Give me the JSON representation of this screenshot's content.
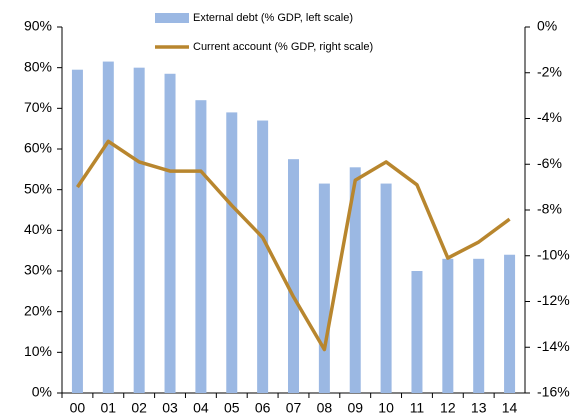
{
  "chart_data": {
    "type": "bar_line",
    "categories": [
      "00",
      "01",
      "02",
      "03",
      "04",
      "05",
      "06",
      "07",
      "08",
      "09",
      "10",
      "11",
      "12",
      "13",
      "14"
    ],
    "series": [
      {
        "name": "External debt (% GDP, left scale)",
        "type": "bar",
        "axis": "y",
        "color": "#9bb8e3",
        "values": [
          79.5,
          81.5,
          80,
          78.5,
          72,
          69,
          67,
          57.5,
          51.5,
          55.5,
          51.5,
          30,
          33,
          33,
          34
        ]
      },
      {
        "name": "Current account (% GDP, right scale)",
        "type": "line",
        "axis": "y2",
        "color": "#b8862e",
        "values": [
          -7.0,
          -5.0,
          -5.9,
          -6.3,
          -6.3,
          -7.8,
          -9.2,
          -11.8,
          -14.1,
          -6.7,
          -5.9,
          -6.9,
          -10.1,
          -9.4,
          -8.4
        ]
      }
    ],
    "ylim": [
      0,
      90
    ],
    "yticks": [
      {
        "value": 0,
        "label": "0%"
      },
      {
        "value": 10,
        "label": "10%"
      },
      {
        "value": 20,
        "label": "20%"
      },
      {
        "value": 30,
        "label": "30%"
      },
      {
        "value": 40,
        "label": "40%"
      },
      {
        "value": 50,
        "label": "50%"
      },
      {
        "value": 60,
        "label": "60%"
      },
      {
        "value": 70,
        "label": "70%"
      },
      {
        "value": 80,
        "label": "80%"
      },
      {
        "value": 90,
        "label": "90%"
      }
    ],
    "y2lim": [
      -16,
      0
    ],
    "y2ticks": [
      {
        "value": 0,
        "label": "0%"
      },
      {
        "value": -2,
        "label": "-2%"
      },
      {
        "value": -4,
        "label": "-4%"
      },
      {
        "value": -6,
        "label": "-6%"
      },
      {
        "value": -8,
        "label": "-8%"
      },
      {
        "value": -10,
        "label": "-10%"
      },
      {
        "value": -12,
        "label": "-12%"
      },
      {
        "value": -14,
        "label": "-14%"
      },
      {
        "value": -16,
        "label": "-16%"
      }
    ]
  }
}
